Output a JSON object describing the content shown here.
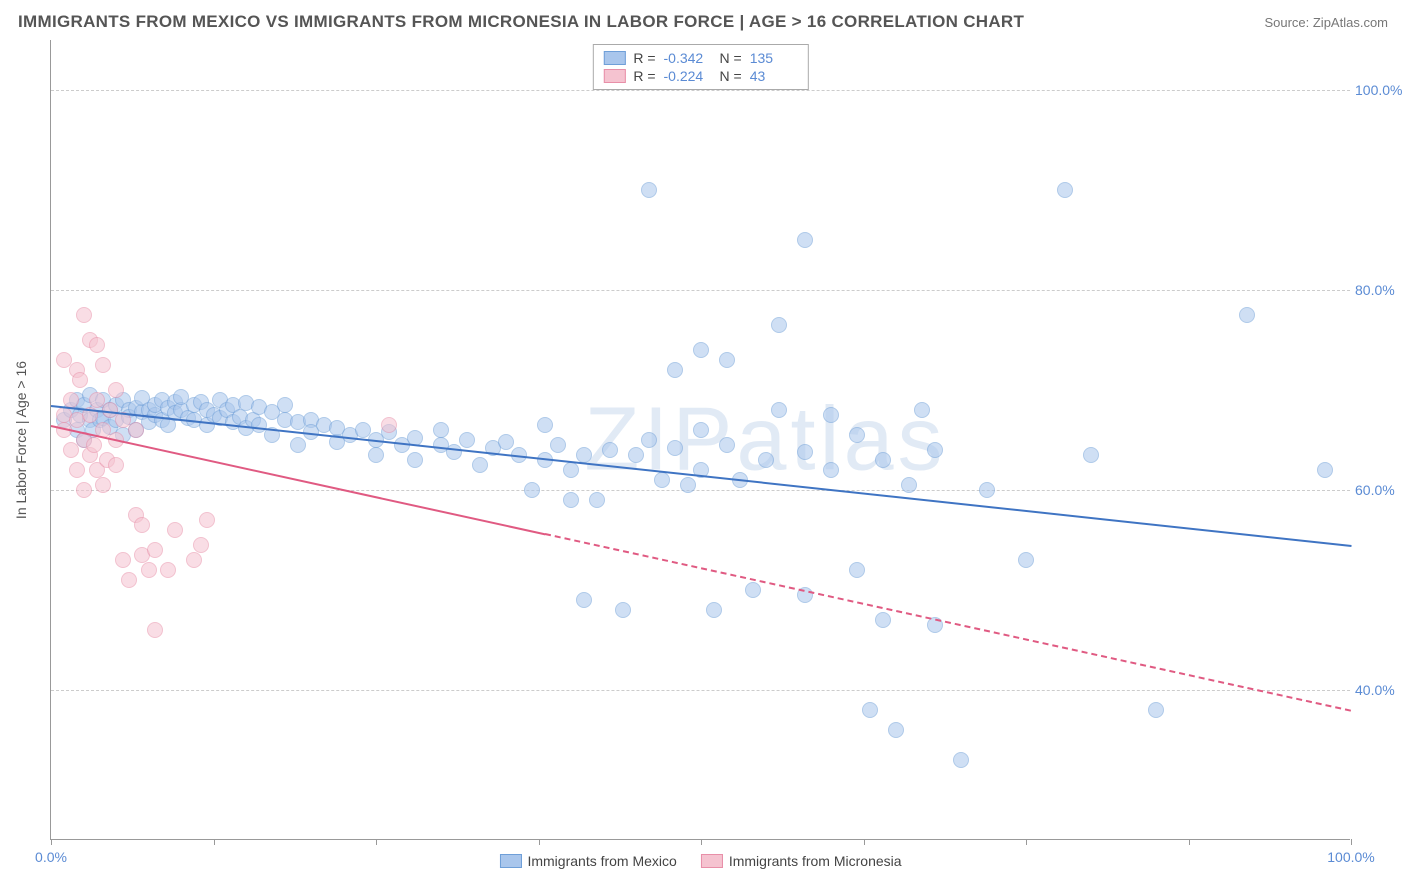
{
  "title": "IMMIGRANTS FROM MEXICO VS IMMIGRANTS FROM MICRONESIA IN LABOR FORCE | AGE > 16 CORRELATION CHART",
  "source": "Source: ZipAtlas.com",
  "watermark": "ZIPatlas",
  "chart": {
    "type": "scatter",
    "y_axis_label": "In Labor Force | Age > 16",
    "xlim": [
      0,
      100
    ],
    "ylim": [
      25,
      105
    ],
    "x_ticks": [
      0,
      12.5,
      25,
      37.5,
      50,
      62.5,
      75,
      87.5,
      100
    ],
    "x_tick_labels": {
      "0": "0.0%",
      "100": "100.0%"
    },
    "y_gridlines": [
      40,
      60,
      80,
      100
    ],
    "y_tick_labels": {
      "40": "40.0%",
      "60": "60.0%",
      "80": "80.0%",
      "100": "100.0%"
    },
    "background_color": "#ffffff",
    "grid_color": "#cccccc",
    "axis_color": "#999999",
    "tick_label_color": "#5b8bd4",
    "marker_radius": 8,
    "marker_opacity": 0.55,
    "series": [
      {
        "name": "Immigrants from Mexico",
        "fill_color": "#a9c6ec",
        "stroke_color": "#6f9fd8",
        "R": "-0.342",
        "N": "135",
        "regression": {
          "x1": 0,
          "y1": 68.5,
          "x2": 100,
          "y2": 54.5,
          "color": "#3f74c3",
          "width": 2,
          "solid_until_x": 100
        },
        "points": [
          [
            1,
            67
          ],
          [
            1.5,
            68
          ],
          [
            2,
            66
          ],
          [
            2,
            69
          ],
          [
            2.2,
            67.5
          ],
          [
            2.5,
            65
          ],
          [
            2.5,
            68.5
          ],
          [
            3,
            67
          ],
          [
            3,
            69.5
          ],
          [
            3.2,
            66
          ],
          [
            3.5,
            68
          ],
          [
            3.8,
            67
          ],
          [
            4,
            69
          ],
          [
            4,
            67.2
          ],
          [
            4.5,
            68
          ],
          [
            4.5,
            66.3
          ],
          [
            5,
            68.5
          ],
          [
            5,
            67
          ],
          [
            5.5,
            69
          ],
          [
            5.5,
            65.5
          ],
          [
            6,
            68
          ],
          [
            6,
            67.3
          ],
          [
            6.5,
            68.2
          ],
          [
            6.5,
            66
          ],
          [
            7,
            67.8
          ],
          [
            7,
            69.2
          ],
          [
            7.5,
            68
          ],
          [
            7.5,
            66.8
          ],
          [
            8,
            67.5
          ],
          [
            8,
            68.5
          ],
          [
            8.5,
            69
          ],
          [
            8.5,
            67
          ],
          [
            9,
            68.2
          ],
          [
            9,
            66.5
          ],
          [
            9.5,
            68.8
          ],
          [
            9.5,
            67.7
          ],
          [
            10,
            68
          ],
          [
            10,
            69.3
          ],
          [
            10.5,
            67.2
          ],
          [
            11,
            68.5
          ],
          [
            11,
            67
          ],
          [
            11.5,
            68.8
          ],
          [
            12,
            66.5
          ],
          [
            12,
            68
          ],
          [
            12.5,
            67.5
          ],
          [
            13,
            69
          ],
          [
            13,
            67.2
          ],
          [
            13.5,
            68
          ],
          [
            14,
            66.8
          ],
          [
            14,
            68.5
          ],
          [
            14.5,
            67.3
          ],
          [
            15,
            68.7
          ],
          [
            15,
            66.2
          ],
          [
            15.5,
            67
          ],
          [
            16,
            68.3
          ],
          [
            16,
            66.5
          ],
          [
            17,
            67.8
          ],
          [
            17,
            65.5
          ],
          [
            18,
            67
          ],
          [
            18,
            68.5
          ],
          [
            19,
            66.8
          ],
          [
            19,
            64.5
          ],
          [
            20,
            67
          ],
          [
            20,
            65.8
          ],
          [
            21,
            66.5
          ],
          [
            22,
            64.8
          ],
          [
            22,
            66.2
          ],
          [
            23,
            65.5
          ],
          [
            24,
            66
          ],
          [
            25,
            65
          ],
          [
            25,
            63.5
          ],
          [
            26,
            65.8
          ],
          [
            27,
            64.5
          ],
          [
            28,
            65.2
          ],
          [
            28,
            63
          ],
          [
            30,
            64.5
          ],
          [
            30,
            66
          ],
          [
            31,
            63.8
          ],
          [
            32,
            65
          ],
          [
            33,
            62.5
          ],
          [
            34,
            64.2
          ],
          [
            35,
            64.8
          ],
          [
            36,
            63.5
          ],
          [
            37,
            60
          ],
          [
            38,
            63
          ],
          [
            38,
            66.5
          ],
          [
            39,
            64.5
          ],
          [
            40,
            59
          ],
          [
            40,
            62
          ],
          [
            41,
            63.5
          ],
          [
            41,
            49
          ],
          [
            42,
            59
          ],
          [
            43,
            64
          ],
          [
            44,
            48
          ],
          [
            45,
            63.5
          ],
          [
            46,
            90
          ],
          [
            46,
            65
          ],
          [
            47,
            61
          ],
          [
            48,
            64.2
          ],
          [
            48,
            72
          ],
          [
            49,
            60.5
          ],
          [
            50,
            62
          ],
          [
            50,
            66
          ],
          [
            50,
            74
          ],
          [
            51,
            48
          ],
          [
            52,
            64.5
          ],
          [
            52,
            73
          ],
          [
            53,
            61
          ],
          [
            54,
            50
          ],
          [
            55,
            63
          ],
          [
            56,
            68
          ],
          [
            56,
            76.5
          ],
          [
            58,
            85
          ],
          [
            58,
            63.8
          ],
          [
            58,
            49.5
          ],
          [
            60,
            62
          ],
          [
            60,
            67.5
          ],
          [
            62,
            52
          ],
          [
            62,
            65.5
          ],
          [
            63,
            38
          ],
          [
            64,
            47
          ],
          [
            64,
            63
          ],
          [
            65,
            36
          ],
          [
            66,
            60.5
          ],
          [
            67,
            68
          ],
          [
            68,
            46.5
          ],
          [
            68,
            64
          ],
          [
            70,
            33
          ],
          [
            72,
            60
          ],
          [
            75,
            53
          ],
          [
            78,
            90
          ],
          [
            80,
            63.5
          ],
          [
            85,
            38
          ],
          [
            92,
            77.5
          ],
          [
            98,
            62
          ]
        ]
      },
      {
        "name": "Immigrants from Micronesia",
        "fill_color": "#f5c3d0",
        "stroke_color": "#e88fa8",
        "R": "-0.224",
        "N": "43",
        "regression": {
          "x1": 0,
          "y1": 66.5,
          "x2": 100,
          "y2": 38,
          "color": "#e05a82",
          "width": 2,
          "solid_until_x": 38
        },
        "points": [
          [
            1,
            66
          ],
          [
            1,
            73
          ],
          [
            1,
            67.5
          ],
          [
            1.5,
            69
          ],
          [
            1.5,
            64
          ],
          [
            2,
            72
          ],
          [
            2,
            62
          ],
          [
            2,
            67
          ],
          [
            2.2,
            71
          ],
          [
            2.5,
            60
          ],
          [
            2.5,
            65
          ],
          [
            2.5,
            77.5
          ],
          [
            3,
            63.5
          ],
          [
            3,
            67.5
          ],
          [
            3,
            75
          ],
          [
            3.3,
            64.5
          ],
          [
            3.5,
            62
          ],
          [
            3.5,
            69
          ],
          [
            3.5,
            74.5
          ],
          [
            4,
            60.5
          ],
          [
            4,
            66
          ],
          [
            4,
            72.5
          ],
          [
            4.3,
            63
          ],
          [
            4.5,
            68
          ],
          [
            5,
            62.5
          ],
          [
            5,
            65
          ],
          [
            5,
            70
          ],
          [
            5.5,
            53
          ],
          [
            5.5,
            67
          ],
          [
            6,
            51
          ],
          [
            6.5,
            57.5
          ],
          [
            6.5,
            66
          ],
          [
            7,
            56.5
          ],
          [
            7,
            53.5
          ],
          [
            7.5,
            52
          ],
          [
            8,
            54
          ],
          [
            8,
            46
          ],
          [
            9,
            52
          ],
          [
            9.5,
            56
          ],
          [
            11,
            53
          ],
          [
            11.5,
            54.5
          ],
          [
            12,
            57
          ],
          [
            26,
            66.5
          ]
        ]
      }
    ]
  },
  "legend_bottom": [
    {
      "label": "Immigrants from Mexico",
      "fill": "#a9c6ec",
      "stroke": "#6f9fd8"
    },
    {
      "label": "Immigrants from Micronesia",
      "fill": "#f5c3d0",
      "stroke": "#e88fa8"
    }
  ]
}
